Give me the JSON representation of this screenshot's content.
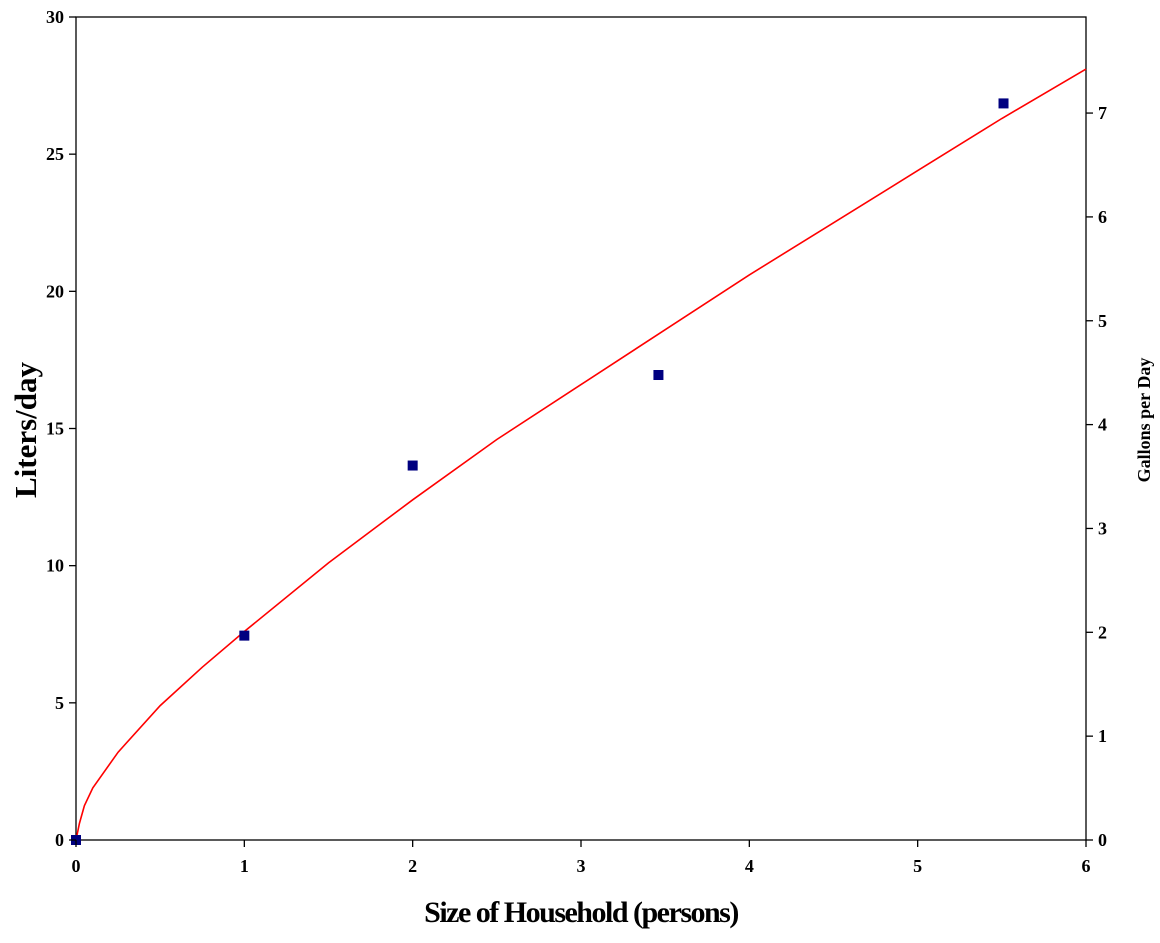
{
  "chart_data": {
    "type": "scatter",
    "title": "",
    "xlabel": "Size of Household (persons)",
    "ylabel": "Liters/day",
    "y2label": "Gallons per Day",
    "xlim": [
      0,
      6
    ],
    "ylim": [
      0,
      30
    ],
    "y2lim": [
      0,
      7.925
    ],
    "x_ticks": [
      0,
      1,
      2,
      3,
      4,
      5,
      6
    ],
    "y_ticks": [
      0,
      5,
      10,
      15,
      20,
      25,
      30
    ],
    "y2_ticks": [
      0,
      1,
      2,
      3,
      4,
      5,
      6,
      7
    ],
    "grid": false,
    "legend": "none",
    "series": [
      {
        "kind": "scatter",
        "color": "#000080",
        "marker": "square",
        "x": [
          0,
          1,
          2,
          3.46,
          5.51
        ],
        "y": [
          0,
          7.45,
          13.65,
          16.95,
          26.85
        ]
      },
      {
        "kind": "line",
        "color": "#ff0000",
        "x": [
          0,
          0.02,
          0.05,
          0.1,
          0.25,
          0.5,
          0.75,
          1,
          1.5,
          2,
          2.5,
          3,
          3.5,
          4,
          4.5,
          5,
          5.5,
          6
        ],
        "y": [
          0,
          0.6,
          1.25,
          1.9,
          3.2,
          4.9,
          6.3,
          7.6,
          10.1,
          12.4,
          14.6,
          16.6,
          18.6,
          20.6,
          22.5,
          24.4,
          26.3,
          28.1
        ]
      }
    ]
  }
}
